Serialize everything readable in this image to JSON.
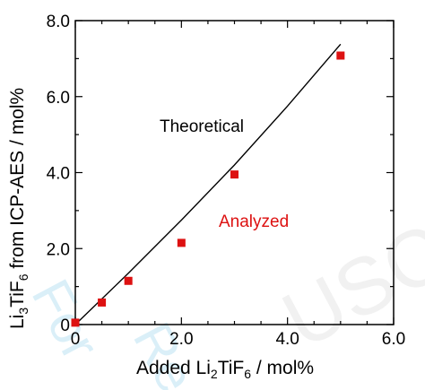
{
  "chart_data": {
    "type": "scatter",
    "xlim": [
      0,
      6
    ],
    "ylim": [
      0,
      8
    ],
    "x_ticks": [
      "0",
      "2.0",
      "4.0",
      "6.0"
    ],
    "y_ticks": [
      "0",
      "2.0",
      "4.0",
      "6.0",
      "8.0"
    ],
    "xlabel": {
      "pre": "Added Li",
      "sub1": "2",
      "mid": "TiF",
      "sub2": "6",
      "post": " / mol%"
    },
    "ylabel": {
      "pre": "Li",
      "sub1": "3",
      "mid": "TiF",
      "sub2": "6",
      "post": " from ICP-AES / mol%"
    },
    "grid": false,
    "series": [
      {
        "name": "Analyzed",
        "kind": "scatter",
        "color": "#dd1111",
        "x": [
          0.0,
          0.5,
          1.0,
          2.0,
          3.0,
          5.0
        ],
        "y": [
          0.05,
          0.58,
          1.15,
          2.15,
          3.95,
          7.08
        ]
      },
      {
        "name": "Theoretical",
        "kind": "line",
        "color": "#000000",
        "x": [
          0.0,
          1.0,
          2.0,
          3.0,
          4.0,
          5.0
        ],
        "y": [
          0.0,
          1.35,
          2.75,
          4.2,
          5.75,
          7.38
        ]
      }
    ],
    "annotations": [
      {
        "text": "Theoretical",
        "color": "#000000"
      },
      {
        "text": "Analyzed",
        "color": "#dd1111"
      }
    ],
    "watermark": [
      "For",
      "Re",
      "USC"
    ]
  }
}
